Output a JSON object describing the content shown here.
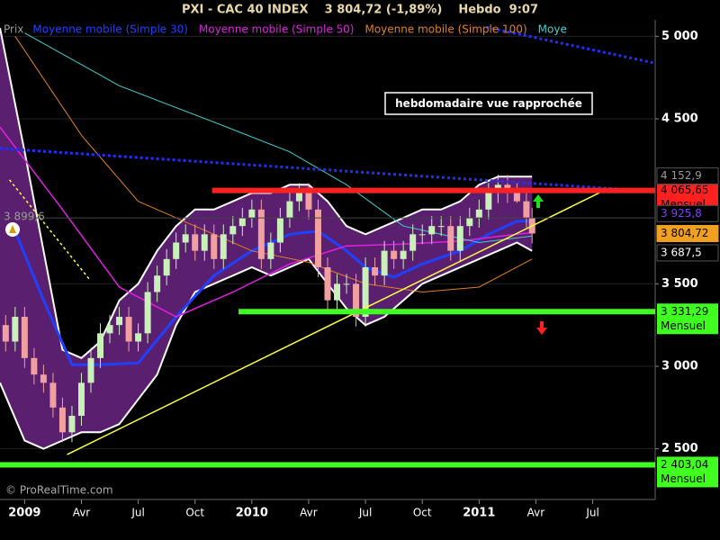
{
  "chart_data": {
    "type": "candlestick",
    "title": "PXI - CAC 40 INDEX    3 804,72 (-1,89%)    Hebdo  9:07",
    "legend_position": "top-left",
    "grid": true,
    "xlim": [
      -1.3,
      33.3
    ],
    "xticks": [
      {
        "value": 0,
        "label": "2009"
      },
      {
        "value": 3,
        "label": "Avr"
      },
      {
        "value": 6,
        "label": "Jul"
      },
      {
        "value": 9,
        "label": "Oct"
      },
      {
        "value": 12,
        "label": "2010"
      },
      {
        "value": 15,
        "label": "Avr"
      },
      {
        "value": 18,
        "label": "Jul"
      },
      {
        "value": 21,
        "label": "Oct"
      },
      {
        "value": 24,
        "label": "2011"
      },
      {
        "value": 27,
        "label": "Avr"
      },
      {
        "value": 30,
        "label": "Jul"
      }
    ],
    "ylim": [
      2220,
      5100
    ],
    "yticks": [
      {
        "value": 2500,
        "label": "2 500"
      },
      {
        "value": 3000,
        "label": "3 000"
      },
      {
        "value": 3500,
        "label": "3 500"
      },
      {
        "value": 4500,
        "label": "4 500"
      },
      {
        "value": 5000,
        "label": "5 000"
      }
    ],
    "candles": {
      "name": "Prix",
      "legend_color": "#9a9a9a",
      "color_up": "#c8f0b8",
      "color_down": "#f0a0a0",
      "x": [
        -1,
        -0.5,
        0,
        0.5,
        1,
        1.5,
        2,
        2.5,
        3,
        3.5,
        4,
        4.5,
        5,
        5.5,
        6,
        6.5,
        7,
        7.5,
        8,
        8.5,
        9,
        9.5,
        10,
        10.5,
        11,
        11.5,
        12,
        12.5,
        13,
        13.5,
        14,
        14.5,
        15,
        15.5,
        16,
        16.5,
        17,
        17.5,
        18,
        18.5,
        19,
        19.5,
        20,
        20.5,
        21,
        21.5,
        22,
        22.5,
        23,
        23.5,
        24,
        24.5,
        25,
        25.5,
        26,
        26.5,
        26.8
      ],
      "open": [
        3250,
        3150,
        3300,
        3050,
        2950,
        2900,
        2750,
        2600,
        2700,
        2900,
        3050,
        3200,
        3250,
        3300,
        3150,
        3200,
        3450,
        3550,
        3650,
        3750,
        3800,
        3700,
        3800,
        3650,
        3800,
        3850,
        3900,
        3950,
        3650,
        3750,
        3900,
        4000,
        4050,
        3950,
        3600,
        3400,
        3500,
        3500,
        3300,
        3600,
        3550,
        3700,
        3650,
        3700,
        3800,
        3800,
        3850,
        3850,
        3700,
        3850,
        3900,
        3950,
        4050,
        4100,
        4050,
        4000,
        3900
      ],
      "high": [
        3310,
        3360,
        3360,
        3110,
        3010,
        2960,
        2810,
        2760,
        2960,
        3110,
        3260,
        3310,
        3360,
        3360,
        3260,
        3510,
        3610,
        3710,
        3810,
        3860,
        3860,
        3860,
        3860,
        3860,
        3910,
        3960,
        4010,
        4010,
        3810,
        3960,
        4060,
        4110,
        4110,
        4010,
        3660,
        3560,
        3560,
        3560,
        3660,
        3660,
        3760,
        3760,
        3760,
        3860,
        3860,
        3910,
        3910,
        3910,
        3910,
        3960,
        4010,
        4110,
        4160,
        4160,
        4110,
        4060,
        3960
      ],
      "low": [
        3090,
        3090,
        2990,
        2890,
        2840,
        2690,
        2540,
        2540,
        2640,
        2840,
        2990,
        3140,
        3190,
        3090,
        3090,
        3140,
        3390,
        3490,
        3590,
        3690,
        3640,
        3640,
        3590,
        3590,
        3740,
        3790,
        3840,
        3590,
        3590,
        3690,
        3840,
        3940,
        3890,
        3540,
        3340,
        3340,
        3440,
        3240,
        3240,
        3490,
        3490,
        3590,
        3590,
        3640,
        3740,
        3740,
        3790,
        3640,
        3640,
        3790,
        3840,
        3890,
        3990,
        3990,
        3990,
        3840,
        3745
      ],
      "close": [
        3150,
        3300,
        3050,
        2950,
        2900,
        2750,
        2600,
        2700,
        2900,
        3050,
        3200,
        3250,
        3300,
        3150,
        3200,
        3450,
        3550,
        3650,
        3750,
        3800,
        3700,
        3800,
        3650,
        3800,
        3850,
        3900,
        3950,
        3650,
        3750,
        3900,
        4000,
        4050,
        3950,
        3600,
        3400,
        3500,
        3500,
        3300,
        3600,
        3550,
        3700,
        3650,
        3700,
        3800,
        3800,
        3850,
        3850,
        3700,
        3850,
        3900,
        3950,
        4050,
        4100,
        4050,
        4000,
        3900,
        3805
      ]
    },
    "bands": {
      "fill": "#5b1f70",
      "stroke": "#ffffff",
      "x": [
        -1.3,
        0,
        1,
        2,
        3,
        4,
        5,
        6,
        7,
        8,
        9,
        10,
        11,
        12,
        13,
        14,
        15,
        16,
        17,
        18,
        19,
        20,
        21,
        22,
        23,
        24,
        25,
        26,
        26.8
      ],
      "upper": [
        5050,
        4300,
        3700,
        3100,
        3050,
        3150,
        3400,
        3500,
        3700,
        3850,
        3950,
        3950,
        4000,
        4050,
        4050,
        4100,
        4100,
        4000,
        3850,
        3800,
        3850,
        3900,
        3950,
        3950,
        4000,
        4100,
        4150,
        4150,
        4150
      ],
      "lower": [
        2900,
        2550,
        2500,
        2550,
        2600,
        2600,
        2650,
        2800,
        2950,
        3250,
        3450,
        3500,
        3550,
        3600,
        3550,
        3600,
        3650,
        3500,
        3350,
        3250,
        3300,
        3400,
        3500,
        3550,
        3600,
        3650,
        3700,
        3750,
        3700
      ]
    },
    "series": [
      {
        "name": "Moyenne mobile (Simple 30)",
        "color": "#2040ff",
        "width": 3,
        "x": [
          -0.5,
          1,
          2.5,
          4,
          6,
          8,
          10,
          12,
          14,
          15.5,
          17,
          18,
          19.5,
          21,
          23,
          24.5,
          26,
          26.8
        ],
        "values": [
          3820,
          3400,
          3010,
          3010,
          3020,
          3300,
          3550,
          3700,
          3800,
          3820,
          3700,
          3600,
          3540,
          3620,
          3700,
          3800,
          3880,
          3880
        ]
      },
      {
        "name": "Moyenne mobile (Simple 50)",
        "color": "#e020e0",
        "width": 1.5,
        "x": [
          -1.3,
          2,
          5,
          8,
          11,
          14,
          17,
          20,
          23,
          26,
          26.8
        ],
        "values": [
          4450,
          3950,
          3480,
          3300,
          3450,
          3620,
          3730,
          3740,
          3760,
          3800,
          3810
        ]
      },
      {
        "name": "Moyenne mobile (Simple 100)",
        "color": "#e08020",
        "width": 1,
        "x": [
          -0.5,
          3,
          6,
          9,
          12,
          15,
          18,
          21,
          24,
          26.8
        ],
        "values": [
          5000,
          4400,
          4000,
          3850,
          3700,
          3630,
          3500,
          3450,
          3480,
          3650
        ]
      },
      {
        "name": "Moye",
        "color": "#40d0d0",
        "width": 1,
        "x": [
          0,
          5,
          10,
          14,
          17,
          20,
          24,
          26.8
        ],
        "values": [
          5020,
          4700,
          4480,
          4300,
          4100,
          3850,
          3750,
          3790
        ]
      }
    ],
    "trendlines": [
      {
        "color": "#ffff40",
        "dash": false,
        "width": 1.5,
        "x": [
          2.24,
          30.5
        ],
        "values": [
          2465,
          4060
        ]
      },
      {
        "color": "#2030ff",
        "dash": true,
        "width": 3,
        "x": [
          -1.3,
          33.3
        ],
        "values": [
          4320,
          4060
        ]
      },
      {
        "color": "#2030ff",
        "dash": true,
        "width": 3,
        "x": [
          24.4,
          33.3
        ],
        "values": [
          5055,
          4837
        ]
      },
      {
        "color": "#ffff40",
        "dash": true,
        "width": 1.5,
        "x": [
          -0.8,
          3.4
        ],
        "values": [
          4130,
          3530
        ]
      }
    ],
    "levels": [
      {
        "value": 4065.65,
        "color": "#ff2020",
        "x_start": 9.9,
        "label": "4 065,65",
        "note": "Mensuel",
        "text_color": "#000000"
      },
      {
        "value": 3331.29,
        "color": "#40ff20",
        "x_start": 11.3,
        "label": "3 331,29",
        "note": "Mensuel",
        "text_color": "#000000"
      },
      {
        "value": 2403.04,
        "color": "#40ff20",
        "x_start": -1.3,
        "label": "2 403,04",
        "note": "Mensuel",
        "text_color": "#000000"
      }
    ],
    "price_markers": [
      {
        "value": 4152.9,
        "label": "4 152,9",
        "bg": "#000000",
        "color": "#9a9a9a",
        "side": "right"
      },
      {
        "value": 3925.8,
        "label": "3 925,8",
        "bg": "#000000",
        "color": "#8040ff",
        "side": "right"
      },
      {
        "value": 3804.72,
        "label": "3 804,72",
        "bg": "#f0a020",
        "color": "#000000",
        "side": "right"
      },
      {
        "value": 3687.5,
        "label": "3 687,5",
        "bg": "#000000",
        "color": "#ffffff",
        "side": "right"
      },
      {
        "value": 3899.6,
        "label": "3 899,6",
        "bg": "none",
        "color": "#9a9a9a",
        "side": "left"
      }
    ],
    "annotation": "hebdomadaire vue rapprochée",
    "footnote": "© ProRealTime.com"
  }
}
